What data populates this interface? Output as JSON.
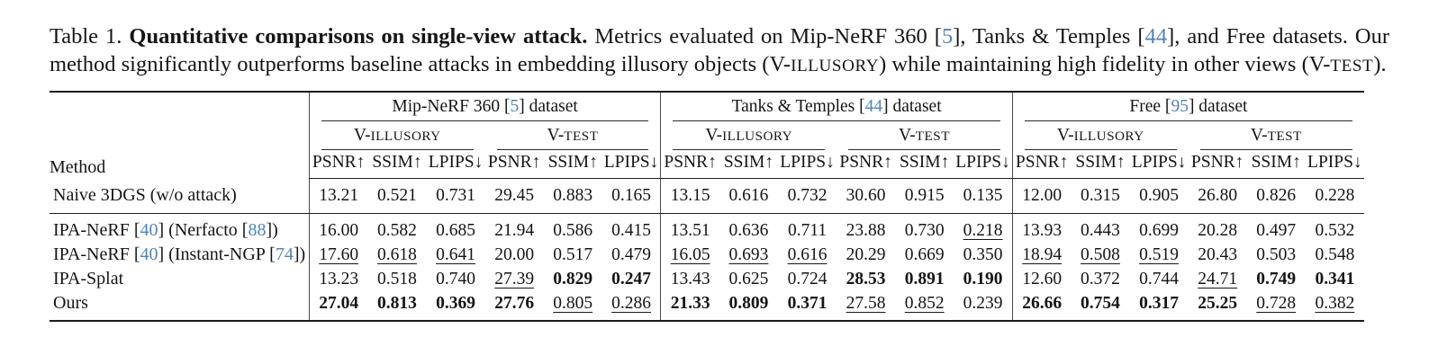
{
  "colors": {
    "cite": "#4f83bd",
    "text": "#151515",
    "rule": "#1a1a1a"
  },
  "caption": {
    "segments": [
      {
        "t": "Table 1. ",
        "s": "n"
      },
      {
        "t": "Quantitative comparisons on single-view attack.",
        "s": "b"
      },
      {
        "t": " Metrics evaluated on Mip-NeRF 360 [",
        "s": "n"
      },
      {
        "t": "5",
        "s": "c"
      },
      {
        "t": "], Tanks & Temples [",
        "s": "n"
      },
      {
        "t": "44",
        "s": "c"
      },
      {
        "t": "], and Free datasets. Our method significantly outperforms baseline attacks in embedding illusory objects (V-",
        "s": "n"
      },
      {
        "t": "ILLUSORY",
        "s": "sc"
      },
      {
        "t": ") while maintaining high fidelity in other views (V-",
        "s": "n"
      },
      {
        "t": "TEST",
        "s": "sc"
      },
      {
        "t": ").",
        "s": "n"
      }
    ]
  },
  "table": {
    "method_header": "Method",
    "groups": [
      {
        "pre": "Mip-NeRF 360 [",
        "cite": "5",
        "post": "] dataset"
      },
      {
        "pre": "Tanks & Temples [",
        "cite": "44",
        "post": "] dataset"
      },
      {
        "pre": "Free [",
        "cite": "95",
        "post": "] dataset"
      }
    ],
    "subheaders": [
      {
        "pre": "V-",
        "sc": "ILLUSORY"
      },
      {
        "pre": "V-",
        "sc": "TEST"
      }
    ],
    "metrics": [
      "PSNR↑",
      "SSIM↑",
      "LPIPS↓"
    ],
    "rows": [
      {
        "label": [
          {
            "t": "Naive 3DGS (w/o attack)",
            "s": "n"
          }
        ],
        "cells": [
          {
            "v": "13.21",
            "f": ""
          },
          {
            "v": "0.521",
            "f": ""
          },
          {
            "v": "0.731",
            "f": ""
          },
          {
            "v": "29.45",
            "f": ""
          },
          {
            "v": "0.883",
            "f": ""
          },
          {
            "v": "0.165",
            "f": ""
          },
          {
            "v": "13.15",
            "f": ""
          },
          {
            "v": "0.616",
            "f": ""
          },
          {
            "v": "0.732",
            "f": ""
          },
          {
            "v": "30.60",
            "f": ""
          },
          {
            "v": "0.915",
            "f": ""
          },
          {
            "v": "0.135",
            "f": ""
          },
          {
            "v": "12.00",
            "f": ""
          },
          {
            "v": "0.315",
            "f": ""
          },
          {
            "v": "0.905",
            "f": ""
          },
          {
            "v": "26.80",
            "f": ""
          },
          {
            "v": "0.826",
            "f": ""
          },
          {
            "v": "0.228",
            "f": ""
          }
        ]
      },
      {
        "label": [
          {
            "t": "IPA-NeRF [",
            "s": "n"
          },
          {
            "t": "40",
            "s": "c"
          },
          {
            "t": "] (Nerfacto [",
            "s": "n"
          },
          {
            "t": "88",
            "s": "c"
          },
          {
            "t": "])",
            "s": "n"
          }
        ],
        "cells": [
          {
            "v": "16.00",
            "f": ""
          },
          {
            "v": "0.582",
            "f": ""
          },
          {
            "v": "0.685",
            "f": ""
          },
          {
            "v": "21.94",
            "f": ""
          },
          {
            "v": "0.586",
            "f": ""
          },
          {
            "v": "0.415",
            "f": ""
          },
          {
            "v": "13.51",
            "f": ""
          },
          {
            "v": "0.636",
            "f": ""
          },
          {
            "v": "0.711",
            "f": ""
          },
          {
            "v": "23.88",
            "f": ""
          },
          {
            "v": "0.730",
            "f": ""
          },
          {
            "v": "0.218",
            "f": "u"
          },
          {
            "v": "13.93",
            "f": ""
          },
          {
            "v": "0.443",
            "f": ""
          },
          {
            "v": "0.699",
            "f": ""
          },
          {
            "v": "20.28",
            "f": ""
          },
          {
            "v": "0.497",
            "f": ""
          },
          {
            "v": "0.532",
            "f": ""
          }
        ]
      },
      {
        "label": [
          {
            "t": "IPA-NeRF [",
            "s": "n"
          },
          {
            "t": "40",
            "s": "c"
          },
          {
            "t": "] (Instant-NGP [",
            "s": "n"
          },
          {
            "t": "74",
            "s": "c"
          },
          {
            "t": "])",
            "s": "n"
          }
        ],
        "cells": [
          {
            "v": "17.60",
            "f": "u"
          },
          {
            "v": "0.618",
            "f": "u"
          },
          {
            "v": "0.641",
            "f": "u"
          },
          {
            "v": "20.00",
            "f": ""
          },
          {
            "v": "0.517",
            "f": ""
          },
          {
            "v": "0.479",
            "f": ""
          },
          {
            "v": "16.05",
            "f": "u"
          },
          {
            "v": "0.693",
            "f": "u"
          },
          {
            "v": "0.616",
            "f": "u"
          },
          {
            "v": "20.29",
            "f": ""
          },
          {
            "v": "0.669",
            "f": ""
          },
          {
            "v": "0.350",
            "f": ""
          },
          {
            "v": "18.94",
            "f": "u"
          },
          {
            "v": "0.508",
            "f": "u"
          },
          {
            "v": "0.519",
            "f": "u"
          },
          {
            "v": "20.43",
            "f": ""
          },
          {
            "v": "0.503",
            "f": ""
          },
          {
            "v": "0.548",
            "f": ""
          }
        ]
      },
      {
        "label": [
          {
            "t": "IPA-Splat",
            "s": "n"
          }
        ],
        "cells": [
          {
            "v": "13.23",
            "f": ""
          },
          {
            "v": "0.518",
            "f": ""
          },
          {
            "v": "0.740",
            "f": ""
          },
          {
            "v": "27.39",
            "f": "u"
          },
          {
            "v": "0.829",
            "f": "b"
          },
          {
            "v": "0.247",
            "f": "b"
          },
          {
            "v": "13.43",
            "f": ""
          },
          {
            "v": "0.625",
            "f": ""
          },
          {
            "v": "0.724",
            "f": ""
          },
          {
            "v": "28.53",
            "f": "b"
          },
          {
            "v": "0.891",
            "f": "b"
          },
          {
            "v": "0.190",
            "f": "b"
          },
          {
            "v": "12.60",
            "f": ""
          },
          {
            "v": "0.372",
            "f": ""
          },
          {
            "v": "0.744",
            "f": ""
          },
          {
            "v": "24.71",
            "f": "u"
          },
          {
            "v": "0.749",
            "f": "b"
          },
          {
            "v": "0.341",
            "f": "b"
          }
        ]
      },
      {
        "label": [
          {
            "t": "Ours",
            "s": "n"
          }
        ],
        "cells": [
          {
            "v": "27.04",
            "f": "b"
          },
          {
            "v": "0.813",
            "f": "b"
          },
          {
            "v": "0.369",
            "f": "b"
          },
          {
            "v": "27.76",
            "f": "b"
          },
          {
            "v": "0.805",
            "f": "u"
          },
          {
            "v": "0.286",
            "f": "u"
          },
          {
            "v": "21.33",
            "f": "b"
          },
          {
            "v": "0.809",
            "f": "b"
          },
          {
            "v": "0.371",
            "f": "b"
          },
          {
            "v": "27.58",
            "f": "u"
          },
          {
            "v": "0.852",
            "f": "u"
          },
          {
            "v": "0.239",
            "f": ""
          },
          {
            "v": "26.66",
            "f": "b"
          },
          {
            "v": "0.754",
            "f": "b"
          },
          {
            "v": "0.317",
            "f": "b"
          },
          {
            "v": "25.25",
            "f": "b"
          },
          {
            "v": "0.728",
            "f": "u"
          },
          {
            "v": "0.382",
            "f": "u"
          }
        ]
      }
    ]
  }
}
